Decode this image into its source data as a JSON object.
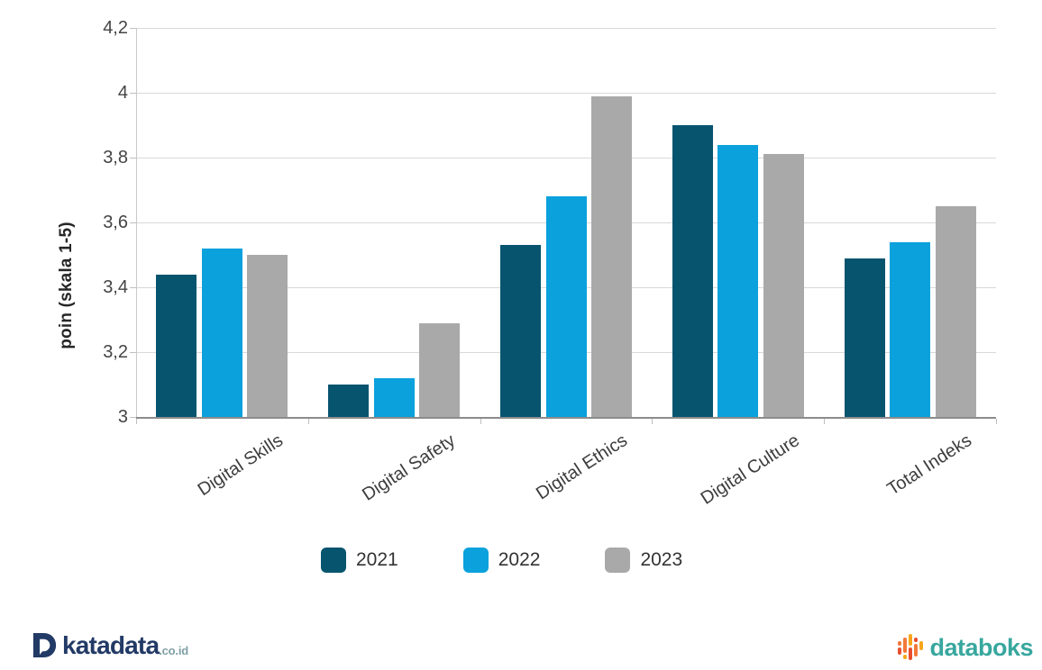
{
  "chart_data": {
    "type": "bar",
    "title": "",
    "ylabel": "poin (skala 1-5)",
    "xlabel": "",
    "categories": [
      "Digital Skills",
      "Digital Safety",
      "Digital Ethics",
      "Digital Culture",
      "Total Indeks"
    ],
    "series": [
      {
        "name": "2021",
        "color": "#07546F",
        "values": [
          3.44,
          3.1,
          3.53,
          3.9,
          3.49
        ]
      },
      {
        "name": "2022",
        "color": "#0AA1DC",
        "values": [
          3.52,
          3.12,
          3.68,
          3.84,
          3.54
        ]
      },
      {
        "name": "2023",
        "color": "#A9A9A9",
        "values": [
          3.5,
          3.29,
          3.99,
          3.81,
          3.65
        ]
      }
    ],
    "ylim": [
      3.0,
      4.2
    ],
    "yticks": [
      3.0,
      3.2,
      3.4,
      3.6,
      3.8,
      4.0,
      4.2
    ],
    "ytick_labels": [
      "3",
      "3,2",
      "3,4",
      "3,6",
      "3,8",
      "4",
      "4,2"
    ],
    "grid": true,
    "legend_position": "bottom",
    "decimal_separator": ","
  },
  "legend": {
    "items": [
      {
        "label": "2021",
        "color": "#07546F"
      },
      {
        "label": "2022",
        "color": "#0AA1DC"
      },
      {
        "label": "2023",
        "color": "#A9A9A9"
      }
    ]
  },
  "footer": {
    "katadata": {
      "text": "katadata",
      "suffix": ".co.id",
      "brand_color": "#223A66",
      "suffix_color": "#7FA0A4"
    },
    "databoks": {
      "text": "databoks",
      "brand_color": "#38A79E",
      "icon_colors": [
        "#F4793B",
        "#E94E2E",
        "#F9A51B"
      ]
    }
  }
}
